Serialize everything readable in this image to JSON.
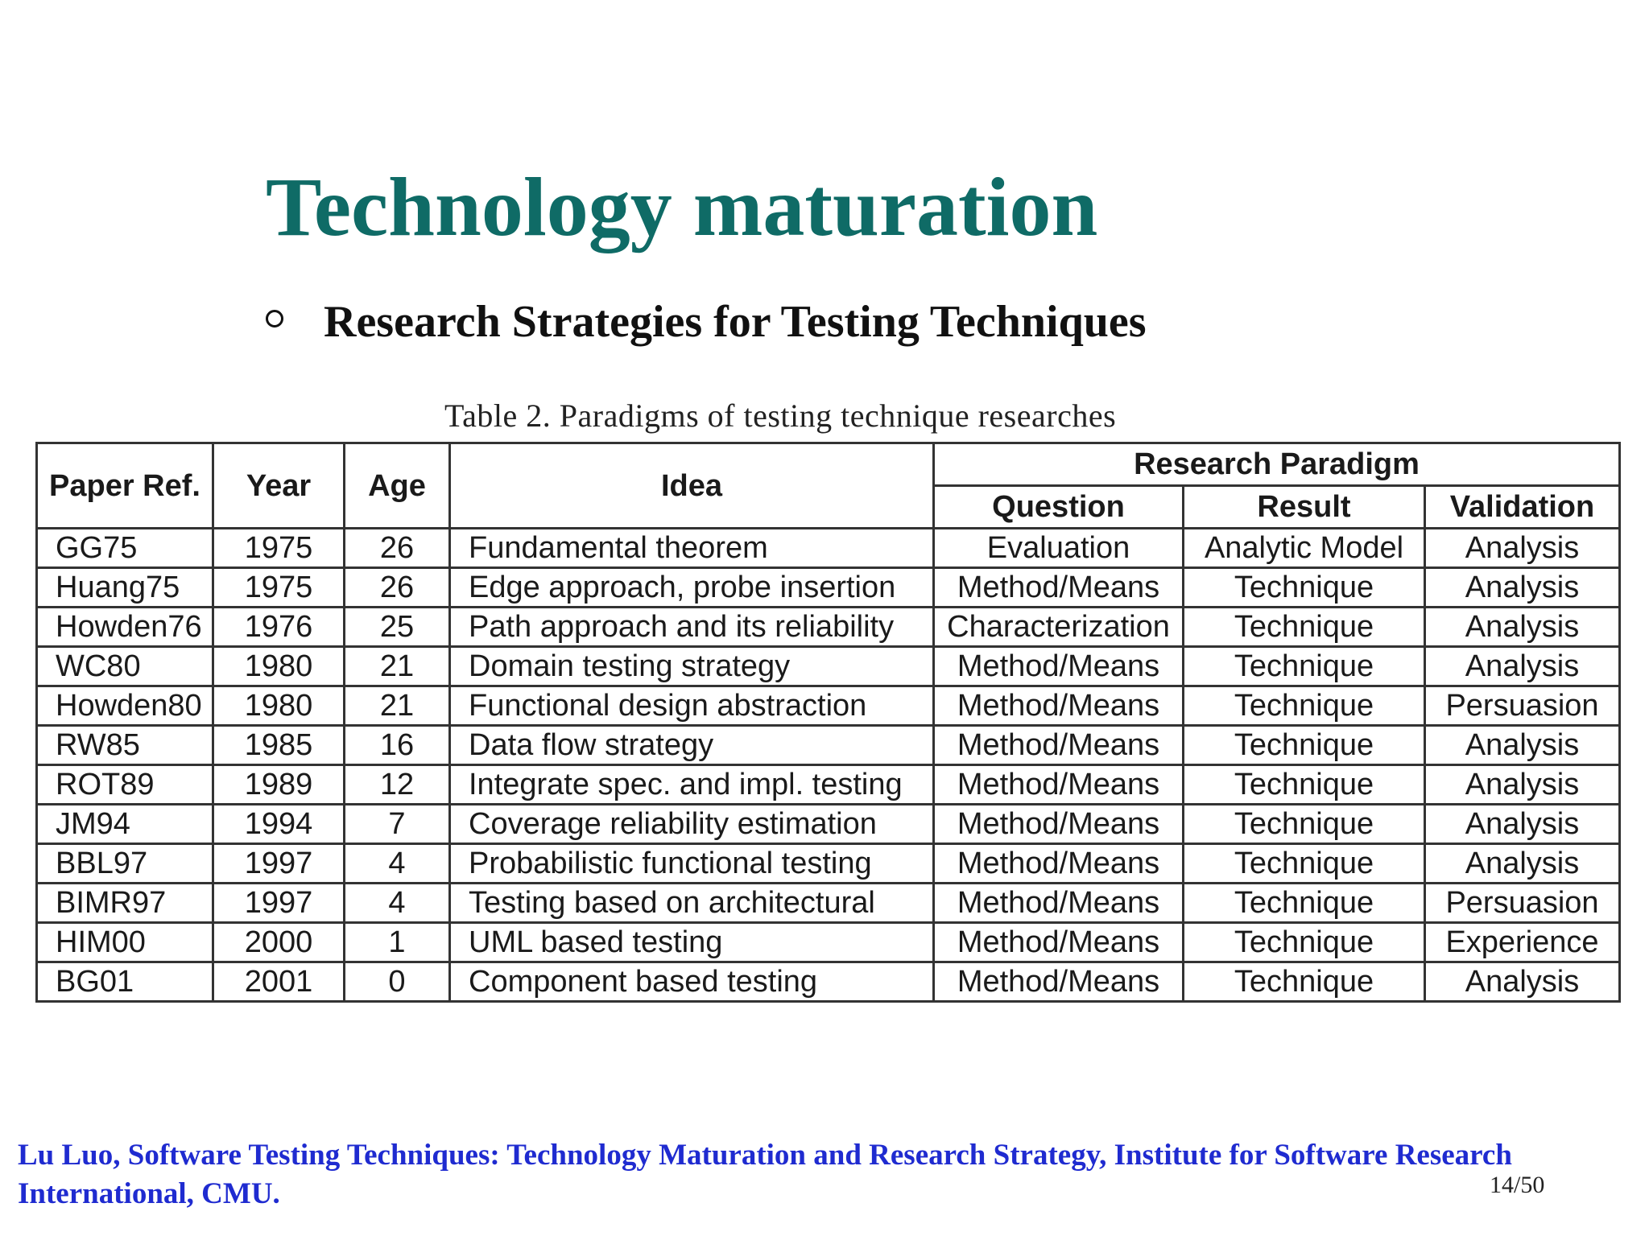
{
  "slide": {
    "title": "Technology maturation",
    "bullet": "Research Strategies for Testing Techniques",
    "table_caption": "Table 2.  Paradigms of testing technique researches",
    "footer": "Lu Luo, Software Testing Techniques: Technology Maturation and Research Strategy, Institute for Software Research International, CMU.",
    "page_number": "14/50"
  },
  "table": {
    "headers": {
      "paper_ref": "Paper Ref.",
      "year": "Year",
      "age": "Age",
      "idea": "Idea",
      "research_paradigm": "Research Paradigm",
      "question": "Question",
      "result": "Result",
      "validation": "Validation"
    },
    "rows": [
      [
        "GG75",
        "1975",
        "26",
        "Fundamental theorem",
        "Evaluation",
        "Analytic Model",
        "Analysis"
      ],
      [
        "Huang75",
        "1975",
        "26",
        "Edge approach, probe insertion",
        "Method/Means",
        "Technique",
        "Analysis"
      ],
      [
        "Howden76",
        "1976",
        "25",
        "Path approach and its reliability",
        "Characterization",
        "Technique",
        "Analysis"
      ],
      [
        "WC80",
        "1980",
        "21",
        "Domain testing strategy",
        "Method/Means",
        "Technique",
        "Analysis"
      ],
      [
        "Howden80",
        "1980",
        "21",
        "Functional design abstraction",
        "Method/Means",
        "Technique",
        "Persuasion"
      ],
      [
        "RW85",
        "1985",
        "16",
        "Data flow strategy",
        "Method/Means",
        "Technique",
        "Analysis"
      ],
      [
        "ROT89",
        "1989",
        "12",
        "Integrate spec. and impl. testing",
        "Method/Means",
        "Technique",
        "Analysis"
      ],
      [
        "JM94",
        "1994",
        "7",
        "Coverage reliability estimation",
        "Method/Means",
        "Technique",
        "Analysis"
      ],
      [
        "BBL97",
        "1997",
        "4",
        "Probabilistic functional testing",
        "Method/Means",
        "Technique",
        "Analysis"
      ],
      [
        "BIMR97",
        "1997",
        "4",
        "Testing based on architectural",
        "Method/Means",
        "Technique",
        "Persuasion"
      ],
      [
        "HIM00",
        "2000",
        "1",
        "UML based testing",
        "Method/Means",
        "Technique",
        "Experience"
      ],
      [
        "BG01",
        "2001",
        "0",
        "Component based testing",
        "Method/Means",
        "Technique",
        "Analysis"
      ]
    ]
  }
}
